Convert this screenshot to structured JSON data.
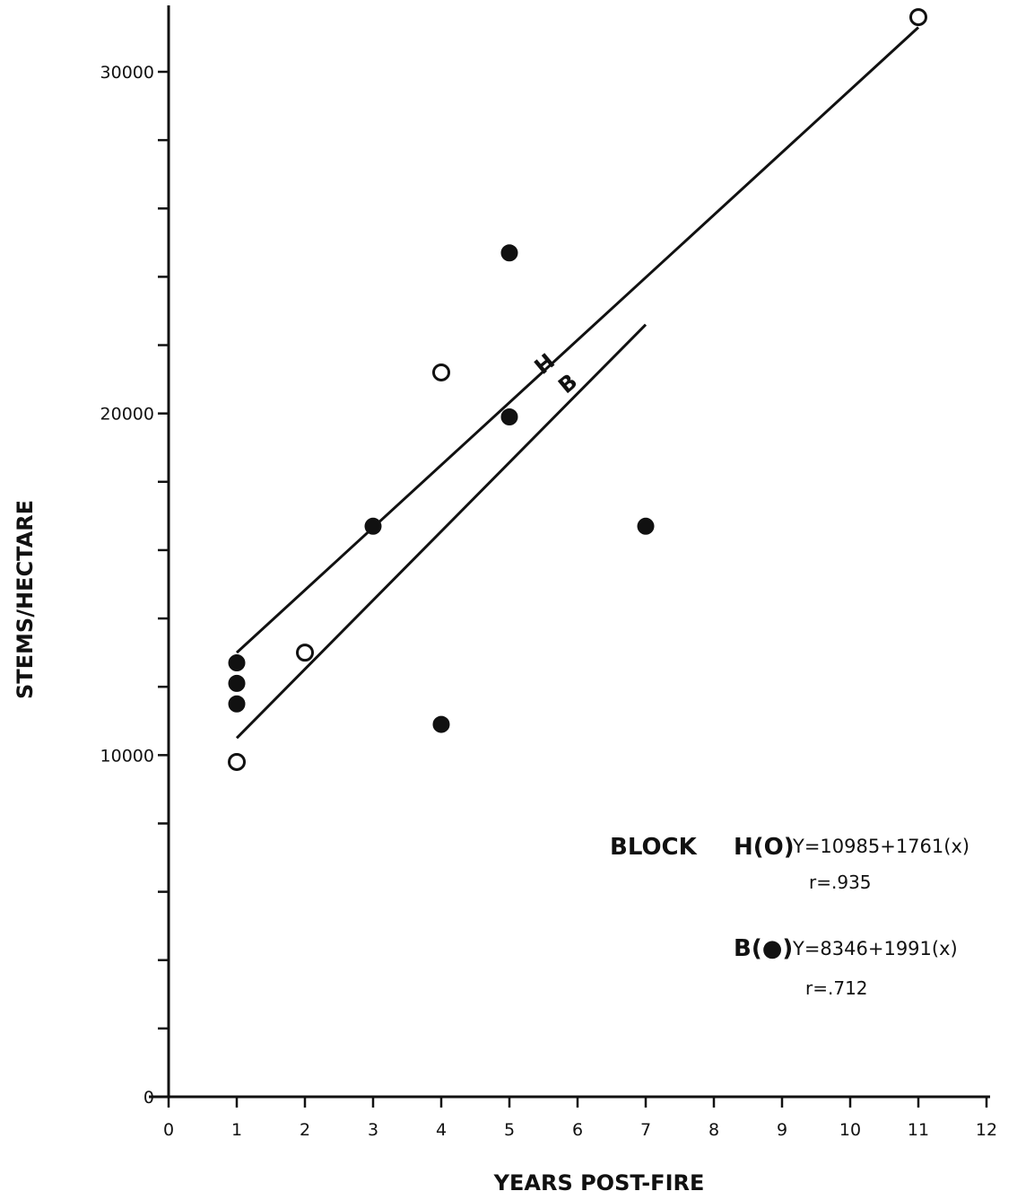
{
  "chart_data": {
    "type": "scatter",
    "xlabel": "YEARS POST-FIRE",
    "ylabel": "STEMS/HECTARE",
    "xlim": [
      0,
      12
    ],
    "ylim": [
      0,
      32000
    ],
    "x_ticks": [
      0,
      1,
      2,
      3,
      4,
      5,
      6,
      7,
      8,
      9,
      10,
      11,
      12
    ],
    "x_tick_labels": [
      "0",
      "1",
      "2",
      "3",
      "4",
      "5",
      "6",
      "7",
      "8",
      "9",
      "10",
      "11",
      "12"
    ],
    "y_ticks": [
      0,
      2000,
      4000,
      6000,
      8000,
      10000,
      12000,
      14000,
      16000,
      18000,
      20000,
      22000,
      24000,
      26000,
      28000,
      30000
    ],
    "y_tick_labels": [
      {
        "value": 0,
        "label": "0"
      },
      {
        "value": 10000,
        "label": "10000"
      },
      {
        "value": 20000,
        "label": "20000"
      },
      {
        "value": 30000,
        "label": "30000"
      }
    ],
    "series": [
      {
        "name": "H",
        "marker": "open-circle",
        "points": [
          {
            "x": 1,
            "y": 9800
          },
          {
            "x": 2,
            "y": 13000
          },
          {
            "x": 4,
            "y": 21200
          },
          {
            "x": 11,
            "y": 31600
          }
        ],
        "fit": {
          "x_range": [
            1,
            11
          ],
          "y_range": [
            13000,
            31300
          ]
        }
      },
      {
        "name": "B",
        "marker": "filled-circle",
        "points": [
          {
            "x": 1,
            "y": 11500
          },
          {
            "x": 1,
            "y": 12100
          },
          {
            "x": 1,
            "y": 12700
          },
          {
            "x": 3,
            "y": 16700
          },
          {
            "x": 4,
            "y": 10900
          },
          {
            "x": 5,
            "y": 19900
          },
          {
            "x": 5,
            "y": 24700
          },
          {
            "x": 7,
            "y": 16700
          }
        ],
        "fit": {
          "x_range": [
            1,
            7
          ],
          "y_range": [
            10500,
            22600
          ]
        }
      }
    ],
    "line_labels": {
      "H": "H",
      "B": "B"
    },
    "legend": {
      "title": "BLOCK",
      "entries": [
        {
          "key": "H",
          "label": "H(O)",
          "symbol": "open-circle",
          "equation": "Y=10985+1761(x)",
          "r": "r=.935"
        },
        {
          "key": "B",
          "label": "B(●)",
          "symbol": "filled-circle",
          "equation": "Y=8346+1991(x)",
          "r": "r=.712"
        }
      ]
    },
    "grid": false
  }
}
